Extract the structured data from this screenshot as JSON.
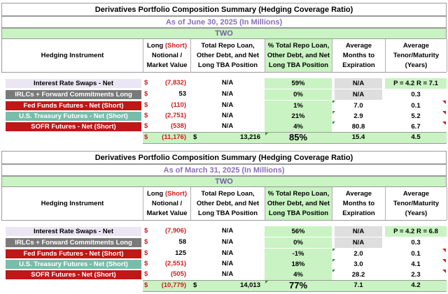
{
  "tables": [
    {
      "title": "Derivatives Portfolio Composition Summary (Hedging Coverage Ratio)",
      "subtitle": "As of June 30, 2025 (In Millions)",
      "company": "TWO",
      "headers": {
        "instrument": "Hedging Instrument",
        "notional_line1a": "Long ",
        "notional_line1b": "(Short)",
        "notional_line2": "Notional /",
        "notional_line3": "Market Value",
        "repo_line1": "Total Repo Loan,",
        "repo_line2": "Other Debt, and Net",
        "repo_line3": "Long  TBA Position",
        "pct_line1": "% Total Repo Loan,",
        "pct_line2": "Other Debt, and Net",
        "pct_line3": "Long TBA Position",
        "months_line1": "Average",
        "months_line2": "Months to",
        "months_line3": "Expiration",
        "tenor_line1": "Average",
        "tenor_line2": "Tenor/Maturity",
        "tenor_line3": "(Years)"
      },
      "rows": [
        {
          "instrument": "Interest Rate Swaps - Net",
          "dollar": "$",
          "value": "(7,832)",
          "value_red": true,
          "repo": "N/A",
          "pct": "59%",
          "months": "N/A",
          "tenor": "P = 4.2 R = 7.1",
          "style": "lavender"
        },
        {
          "instrument": "IRLCs + Forward Commitments Long",
          "dollar": "$",
          "value": "53",
          "value_red": false,
          "repo": "N/A",
          "pct": "0%",
          "months": "N/A",
          "tenor": "0.3",
          "style": "grey"
        },
        {
          "instrument": "Fed Funds Futures - Net (Short)",
          "dollar": "$",
          "value": "(110)",
          "value_red": true,
          "repo": "N/A",
          "pct": "1%",
          "months": "7.0",
          "tenor": "0.1",
          "style": "red"
        },
        {
          "instrument": "U.S. Treasury Futures - Net (Short)",
          "dollar": "$",
          "value": "(2,751)",
          "value_red": true,
          "repo": "N/A",
          "pct": "21%",
          "months": "2.9",
          "tenor": "5.2",
          "style": "teal"
        },
        {
          "instrument": "SOFR Futures - Net (Short)",
          "dollar": "$",
          "value": "(538)",
          "value_red": true,
          "repo": "N/A",
          "pct": "4%",
          "months": "80.8",
          "tenor": "6.7",
          "style": "red"
        }
      ],
      "total": {
        "dollar": "$",
        "value": "(11,176)",
        "dollar2": "$",
        "repo": "13,216",
        "pct": "85%",
        "months": "15.4",
        "tenor": "4.5"
      }
    },
    {
      "title": "Derivatives Portfolio Composition Summary (Hedging Coverage Ratio)",
      "subtitle": "As of March 31, 2025 (In Millions)",
      "company": "TWO",
      "headers": {
        "instrument": "Hedging Instrument",
        "notional_line1a": "Long ",
        "notional_line1b": "(Short)",
        "notional_line2": "Notional /",
        "notional_line3": "Market Value",
        "repo_line1": "Total Repo Loan,",
        "repo_line2": "Other Debt, and Net",
        "repo_line3": "Long  TBA Position",
        "pct_line1": "% Total Repo Loan,",
        "pct_line2": "Other Debt, and Net",
        "pct_line3": "Long TBA Position",
        "months_line1": "Average",
        "months_line2": "Months to",
        "months_line3": "Expiration",
        "tenor_line1": "Average",
        "tenor_line2": "Tenor/Maturity",
        "tenor_line3": "(Years)"
      },
      "rows": [
        {
          "instrument": "Interest Rate Swaps - Net",
          "dollar": "$",
          "value": "(7,906)",
          "value_red": true,
          "repo": "N/A",
          "pct": "56%",
          "months": "N/A",
          "tenor": "P = 4.2 R = 6.8",
          "style": "lavender"
        },
        {
          "instrument": "IRLCs + Forward Commitments Long",
          "dollar": "$",
          "value": "58",
          "value_red": false,
          "repo": "N/A",
          "pct": "0%",
          "months": "N/A",
          "tenor": "0.3",
          "style": "grey"
        },
        {
          "instrument": "Fed Funds Futures - Net (Short)",
          "dollar": "$",
          "value": "125",
          "value_red": false,
          "repo": "N/A",
          "pct": "-1%",
          "months": "2.0",
          "tenor": "0.1",
          "style": "red"
        },
        {
          "instrument": "U.S. Treasury Futures - Net (Short)",
          "dollar": "$",
          "value": "(2,551)",
          "value_red": true,
          "repo": "N/A",
          "pct": "18%",
          "months": "3.0",
          "tenor": "4.1",
          "style": "teal"
        },
        {
          "instrument": "SOFR Futures - Net (Short)",
          "dollar": "$",
          "value": "(505)",
          "value_red": true,
          "repo": "N/A",
          "pct": "4%",
          "months": "28.2",
          "tenor": "2.3",
          "style": "red"
        }
      ],
      "total": {
        "dollar": "$",
        "value": "(10,779)",
        "dollar2": "$",
        "repo": "14,013",
        "pct": "77%",
        "months": "7.1",
        "tenor": "4.2"
      }
    }
  ],
  "colors": {
    "title_purple": "#8a6fb8",
    "mint": "#c9f3c2",
    "lavender": "#eae6f3",
    "grey_label": "#7a7a7a",
    "red_label": "#c01717",
    "teal_label": "#78bdaa",
    "red_text": "#d21d1d"
  }
}
